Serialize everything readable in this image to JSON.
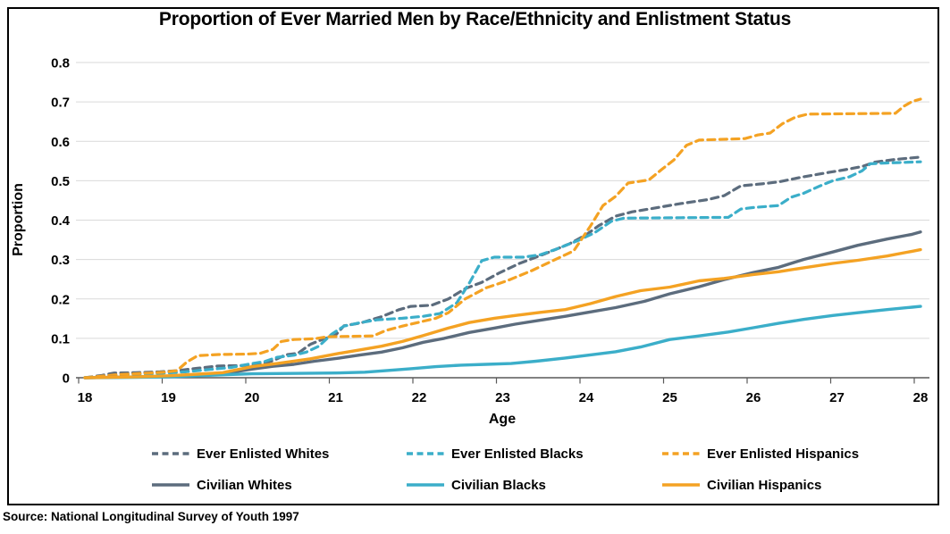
{
  "source": "Source: National Longitudinal Survey of Youth 1997",
  "chart_data": {
    "type": "line",
    "title": "Proportion of Ever Married Men by Race/Ethnicity and Enlistment Status",
    "xlabel": "Age",
    "ylabel": "Proportion",
    "xlim": [
      18,
      28
    ],
    "ylim": [
      0,
      0.8
    ],
    "grid": "horizontal-only",
    "legend_position": "bottom",
    "x_ticks": [
      "18",
      "19",
      "20",
      "21",
      "22",
      "23",
      "24",
      "25",
      "26",
      "27",
      "28"
    ],
    "y_ticks": [
      {
        "value": 0.0,
        "label": "0"
      },
      {
        "value": 0.1,
        "label": "0.1"
      },
      {
        "value": 0.2,
        "label": "0.2"
      },
      {
        "value": 0.3,
        "label": "0.3"
      },
      {
        "value": 0.4,
        "label": "0.4"
      },
      {
        "value": 0.5,
        "label": "0.5"
      },
      {
        "value": 0.6,
        "label": "0.6"
      },
      {
        "value": 0.7,
        "label": "0.7"
      },
      {
        "value": 0.8,
        "label": "0.8"
      }
    ],
    "colors": {
      "whites": "#5C6C7D",
      "blacks": "#3BAEC9",
      "hispanics": "#F4A223",
      "grid": "#D9D9D9",
      "axis": "#595959"
    },
    "series": [
      {
        "name": "Ever Enlisted Whites",
        "color": "#5C6C7D",
        "dashed": true,
        "points": [
          [
            18,
            0
          ],
          [
            18.2,
            0.006
          ],
          [
            18.35,
            0.012
          ],
          [
            18.6,
            0.013
          ],
          [
            18.9,
            0.015
          ],
          [
            19.1,
            0.018
          ],
          [
            19.35,
            0.024
          ],
          [
            19.6,
            0.03
          ],
          [
            19.9,
            0.031
          ],
          [
            20.05,
            0.033
          ],
          [
            20.25,
            0.043
          ],
          [
            20.4,
            0.058
          ],
          [
            20.55,
            0.062
          ],
          [
            20.7,
            0.085
          ],
          [
            20.85,
            0.098
          ],
          [
            21,
            0.108
          ],
          [
            21.1,
            0.132
          ],
          [
            21.3,
            0.139
          ],
          [
            21.55,
            0.155
          ],
          [
            21.75,
            0.172
          ],
          [
            21.9,
            0.181
          ],
          [
            22.15,
            0.184
          ],
          [
            22.35,
            0.2
          ],
          [
            22.55,
            0.226
          ],
          [
            22.75,
            0.242
          ],
          [
            22.95,
            0.265
          ],
          [
            23.2,
            0.29
          ],
          [
            23.5,
            0.314
          ],
          [
            23.8,
            0.34
          ],
          [
            24,
            0.363
          ],
          [
            24.15,
            0.386
          ],
          [
            24.35,
            0.41
          ],
          [
            24.55,
            0.421
          ],
          [
            24.8,
            0.43
          ],
          [
            25.1,
            0.441
          ],
          [
            25.45,
            0.452
          ],
          [
            25.65,
            0.462
          ],
          [
            25.85,
            0.487
          ],
          [
            26.1,
            0.492
          ],
          [
            26.3,
            0.497
          ],
          [
            26.6,
            0.51
          ],
          [
            26.9,
            0.521
          ],
          [
            27.1,
            0.528
          ],
          [
            27.3,
            0.536
          ],
          [
            27.45,
            0.547
          ],
          [
            27.7,
            0.554
          ],
          [
            28,
            0.56
          ]
        ]
      },
      {
        "name": "Ever Enlisted Blacks",
        "color": "#3BAEC9",
        "dashed": true,
        "points": [
          [
            18,
            0
          ],
          [
            18.5,
            0.008
          ],
          [
            18.9,
            0.011
          ],
          [
            19.2,
            0.015
          ],
          [
            19.5,
            0.021
          ],
          [
            19.75,
            0.026
          ],
          [
            20,
            0.036
          ],
          [
            20.15,
            0.041
          ],
          [
            20.3,
            0.052
          ],
          [
            20.5,
            0.057
          ],
          [
            20.65,
            0.065
          ],
          [
            20.8,
            0.08
          ],
          [
            20.95,
            0.11
          ],
          [
            21.1,
            0.131
          ],
          [
            21.3,
            0.14
          ],
          [
            21.5,
            0.147
          ],
          [
            21.8,
            0.151
          ],
          [
            22.05,
            0.156
          ],
          [
            22.25,
            0.163
          ],
          [
            22.45,
            0.19
          ],
          [
            22.6,
            0.24
          ],
          [
            22.75,
            0.297
          ],
          [
            22.9,
            0.306
          ],
          [
            23.25,
            0.306
          ],
          [
            23.45,
            0.312
          ],
          [
            23.65,
            0.327
          ],
          [
            23.9,
            0.348
          ],
          [
            24.1,
            0.368
          ],
          [
            24.3,
            0.397
          ],
          [
            24.45,
            0.405
          ],
          [
            25.7,
            0.407
          ],
          [
            25.85,
            0.428
          ],
          [
            26,
            0.432
          ],
          [
            26.3,
            0.437
          ],
          [
            26.45,
            0.458
          ],
          [
            26.6,
            0.468
          ],
          [
            26.8,
            0.487
          ],
          [
            26.95,
            0.5
          ],
          [
            27.15,
            0.51
          ],
          [
            27.3,
            0.525
          ],
          [
            27.4,
            0.543
          ],
          [
            27.6,
            0.545
          ],
          [
            28,
            0.548
          ]
        ]
      },
      {
        "name": "Ever Enlisted Hispanics",
        "color": "#F4A223",
        "dashed": true,
        "points": [
          [
            18,
            0
          ],
          [
            18.4,
            0.008
          ],
          [
            18.7,
            0.011
          ],
          [
            18.95,
            0.014
          ],
          [
            19.1,
            0.018
          ],
          [
            19.22,
            0.04
          ],
          [
            19.35,
            0.056
          ],
          [
            19.6,
            0.059
          ],
          [
            19.95,
            0.06
          ],
          [
            20.1,
            0.062
          ],
          [
            20.25,
            0.072
          ],
          [
            20.35,
            0.092
          ],
          [
            20.5,
            0.097
          ],
          [
            20.75,
            0.099
          ],
          [
            20.9,
            0.104
          ],
          [
            21.45,
            0.106
          ],
          [
            21.6,
            0.12
          ],
          [
            21.8,
            0.131
          ],
          [
            22,
            0.141
          ],
          [
            22.2,
            0.151
          ],
          [
            22.35,
            0.165
          ],
          [
            22.55,
            0.2
          ],
          [
            22.8,
            0.228
          ],
          [
            23.05,
            0.246
          ],
          [
            23.35,
            0.272
          ],
          [
            23.6,
            0.297
          ],
          [
            23.85,
            0.322
          ],
          [
            24.05,
            0.385
          ],
          [
            24.2,
            0.437
          ],
          [
            24.35,
            0.46
          ],
          [
            24.5,
            0.494
          ],
          [
            24.75,
            0.502
          ],
          [
            24.9,
            0.528
          ],
          [
            25.05,
            0.553
          ],
          [
            25.2,
            0.59
          ],
          [
            25.35,
            0.603
          ],
          [
            25.9,
            0.607
          ],
          [
            26.05,
            0.616
          ],
          [
            26.2,
            0.621
          ],
          [
            26.35,
            0.645
          ],
          [
            26.5,
            0.661
          ],
          [
            26.65,
            0.669
          ],
          [
            27.7,
            0.671
          ],
          [
            27.8,
            0.689
          ],
          [
            27.9,
            0.701
          ],
          [
            28,
            0.707
          ]
        ]
      },
      {
        "name": "Civilian Whites",
        "color": "#5C6C7D",
        "dashed": false,
        "points": [
          [
            18,
            0
          ],
          [
            18.6,
            0.002
          ],
          [
            19,
            0.004
          ],
          [
            19.35,
            0.007
          ],
          [
            19.65,
            0.01
          ],
          [
            20,
            0.022
          ],
          [
            20.25,
            0.029
          ],
          [
            20.5,
            0.034
          ],
          [
            20.75,
            0.042
          ],
          [
            21.05,
            0.05
          ],
          [
            21.3,
            0.058
          ],
          [
            21.55,
            0.065
          ],
          [
            21.8,
            0.076
          ],
          [
            22.05,
            0.09
          ],
          [
            22.3,
            0.1
          ],
          [
            22.6,
            0.115
          ],
          [
            22.9,
            0.126
          ],
          [
            23.15,
            0.136
          ],
          [
            23.45,
            0.146
          ],
          [
            23.75,
            0.156
          ],
          [
            24.05,
            0.167
          ],
          [
            24.35,
            0.178
          ],
          [
            24.7,
            0.194
          ],
          [
            25,
            0.213
          ],
          [
            25.35,
            0.231
          ],
          [
            25.65,
            0.249
          ],
          [
            26,
            0.267
          ],
          [
            26.3,
            0.28
          ],
          [
            26.6,
            0.3
          ],
          [
            26.95,
            0.319
          ],
          [
            27.25,
            0.336
          ],
          [
            27.6,
            0.352
          ],
          [
            27.9,
            0.364
          ],
          [
            28,
            0.37
          ]
        ]
      },
      {
        "name": "Civilian Blacks",
        "color": "#3BAEC9",
        "dashed": false,
        "points": [
          [
            18,
            0
          ],
          [
            18.6,
            0.001
          ],
          [
            19,
            0.002
          ],
          [
            19.35,
            0.005
          ],
          [
            19.7,
            0.008
          ],
          [
            20,
            0.01
          ],
          [
            20.6,
            0.011
          ],
          [
            21,
            0.012
          ],
          [
            21.35,
            0.014
          ],
          [
            21.6,
            0.018
          ],
          [
            21.9,
            0.023
          ],
          [
            22.2,
            0.028
          ],
          [
            22.5,
            0.032
          ],
          [
            22.8,
            0.034
          ],
          [
            23.1,
            0.036
          ],
          [
            23.4,
            0.042
          ],
          [
            23.75,
            0.05
          ],
          [
            24.05,
            0.058
          ],
          [
            24.35,
            0.066
          ],
          [
            24.65,
            0.078
          ],
          [
            25,
            0.097
          ],
          [
            25.35,
            0.106
          ],
          [
            25.7,
            0.116
          ],
          [
            26,
            0.127
          ],
          [
            26.3,
            0.138
          ],
          [
            26.6,
            0.148
          ],
          [
            26.95,
            0.158
          ],
          [
            27.25,
            0.165
          ],
          [
            27.6,
            0.173
          ],
          [
            27.9,
            0.179
          ],
          [
            28,
            0.181
          ]
        ]
      },
      {
        "name": "Civilian Hispanics",
        "color": "#F4A223",
        "dashed": false,
        "points": [
          [
            18,
            0
          ],
          [
            18.6,
            0.002
          ],
          [
            19,
            0.005
          ],
          [
            19.35,
            0.009
          ],
          [
            19.65,
            0.013
          ],
          [
            20,
            0.028
          ],
          [
            20.3,
            0.036
          ],
          [
            20.7,
            0.048
          ],
          [
            21.05,
            0.062
          ],
          [
            21.3,
            0.071
          ],
          [
            21.55,
            0.08
          ],
          [
            21.8,
            0.092
          ],
          [
            22.05,
            0.107
          ],
          [
            22.35,
            0.126
          ],
          [
            22.6,
            0.14
          ],
          [
            22.9,
            0.151
          ],
          [
            23.15,
            0.158
          ],
          [
            23.45,
            0.166
          ],
          [
            23.75,
            0.173
          ],
          [
            24.05,
            0.188
          ],
          [
            24.35,
            0.206
          ],
          [
            24.65,
            0.221
          ],
          [
            25,
            0.23
          ],
          [
            25.35,
            0.246
          ],
          [
            25.65,
            0.252
          ],
          [
            26,
            0.262
          ],
          [
            26.3,
            0.269
          ],
          [
            26.6,
            0.279
          ],
          [
            26.95,
            0.29
          ],
          [
            27.25,
            0.298
          ],
          [
            27.6,
            0.309
          ],
          [
            27.9,
            0.321
          ],
          [
            28,
            0.325
          ]
        ]
      }
    ]
  }
}
